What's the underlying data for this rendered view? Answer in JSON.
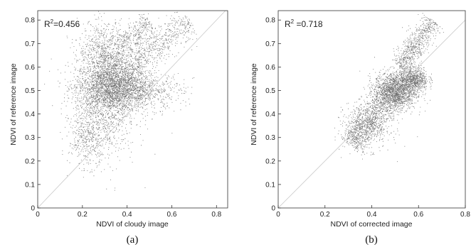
{
  "chart_data": [
    {
      "type": "scatter",
      "panel_label": "(a)",
      "r2_prefix": "R",
      "r2_sup": "2",
      "r2_text": "=0.456",
      "xlabel": "NDVI of cloudy image",
      "ylabel": "NDVI of reference image",
      "xlim": [
        0,
        0.85
      ],
      "ylim": [
        0,
        0.84
      ],
      "x_ticks": [
        0,
        0.2,
        0.4,
        0.6,
        0.8
      ],
      "x_tick_labels": [
        "0",
        "0.2",
        "0.4",
        "0.6",
        "0.8"
      ],
      "y_ticks": [
        0,
        0.1,
        0.2,
        0.3,
        0.4,
        0.5,
        0.6,
        0.7,
        0.8
      ],
      "y_tick_labels": [
        "0",
        "0.1",
        "0.2",
        "0.3",
        "0.4",
        "0.5",
        "0.6",
        "0.7",
        "0.8"
      ],
      "reference_line": "1:1",
      "point_color": "#000000",
      "clusters": [
        {
          "center": [
            0.33,
            0.52
          ],
          "spread": [
            0.08,
            0.055
          ],
          "count": 2400
        },
        {
          "center": [
            0.3,
            0.42
          ],
          "spread": [
            0.07,
            0.11
          ],
          "count": 900
        },
        {
          "center": [
            0.22,
            0.3
          ],
          "spread": [
            0.04,
            0.06
          ],
          "count": 350
        },
        {
          "center": [
            0.45,
            0.5
          ],
          "spread": [
            0.1,
            0.04
          ],
          "count": 700
        },
        {
          "center": [
            0.28,
            0.68
          ],
          "spread": [
            0.05,
            0.06
          ],
          "count": 500
        }
      ],
      "bands": [
        {
          "from": [
            0.38,
            0.58
          ],
          "to": [
            0.68,
            0.8
          ],
          "width": 0.035,
          "count": 700
        },
        {
          "from": [
            0.3,
            0.62
          ],
          "to": [
            0.5,
            0.8
          ],
          "width": 0.03,
          "count": 500
        }
      ]
    },
    {
      "type": "scatter",
      "panel_label": "(b)",
      "r2_prefix": "R",
      "r2_sup": "2",
      "r2_text": " =0.718",
      "xlabel": "NDVI of corrected image",
      "ylabel": "NDVI of reference image",
      "xlim": [
        0,
        0.8
      ],
      "ylim": [
        0,
        0.84
      ],
      "x_ticks": [
        0,
        0.2,
        0.4,
        0.6,
        0.8
      ],
      "x_tick_labels": [
        "0",
        "0.2",
        "0.4",
        "0.6",
        "0.8"
      ],
      "y_ticks": [
        0,
        0.1,
        0.2,
        0.3,
        0.4,
        0.5,
        0.6,
        0.7,
        0.8
      ],
      "y_tick_labels": [
        "0",
        "0.1",
        "0.2",
        "0.3",
        "0.4",
        "0.5",
        "0.6",
        "0.7",
        "0.8"
      ],
      "reference_line": "1:1",
      "point_color": "#000000",
      "clusters": [
        {
          "center": [
            0.5,
            0.5
          ],
          "spread": [
            0.045,
            0.04
          ],
          "count": 1800
        },
        {
          "center": [
            0.58,
            0.55
          ],
          "spread": [
            0.03,
            0.025
          ],
          "count": 700
        },
        {
          "center": [
            0.38,
            0.35
          ],
          "spread": [
            0.05,
            0.05
          ],
          "count": 600
        }
      ],
      "bands": [
        {
          "from": [
            0.3,
            0.27
          ],
          "to": [
            0.5,
            0.5
          ],
          "width": 0.03,
          "count": 900
        },
        {
          "from": [
            0.52,
            0.6
          ],
          "to": [
            0.66,
            0.8
          ],
          "width": 0.025,
          "count": 700
        }
      ]
    }
  ]
}
